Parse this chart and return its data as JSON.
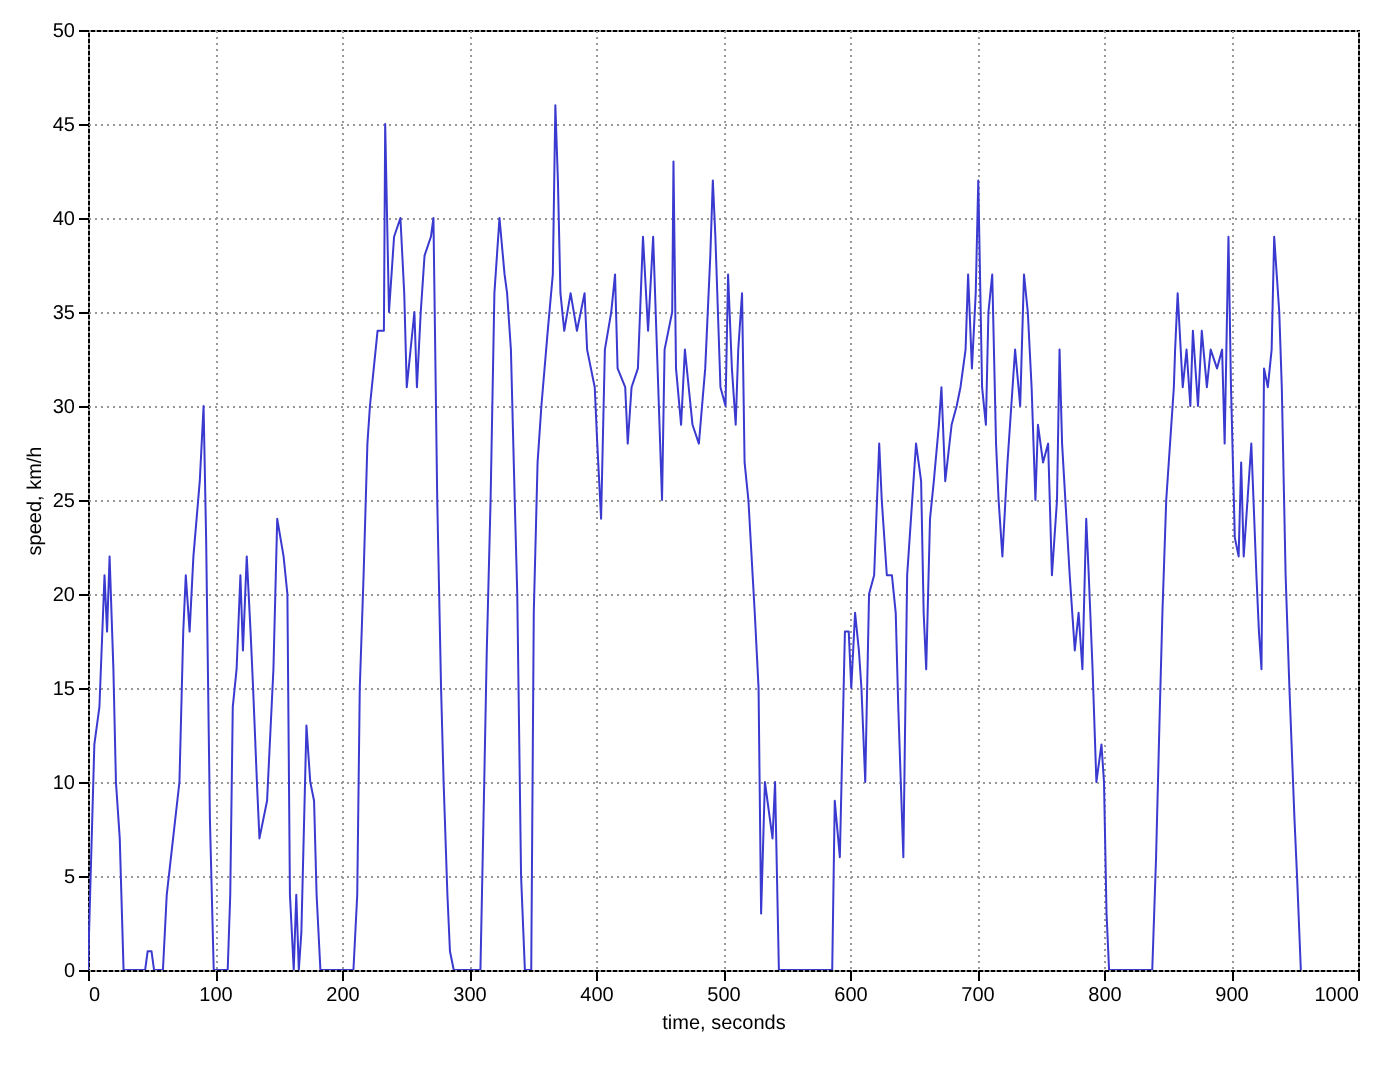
{
  "chart_data": {
    "type": "line",
    "xlabel": "time, seconds",
    "ylabel": "speed, km/h",
    "xlim": [
      0,
      1000
    ],
    "xticks": [
      0,
      100,
      200,
      300,
      400,
      500,
      600,
      700,
      800,
      900,
      1000
    ],
    "ylim": [
      0,
      50
    ],
    "yticks": [
      0,
      5,
      10,
      15,
      20,
      25,
      30,
      35,
      40,
      45,
      50
    ],
    "grid": true,
    "marker": "none",
    "line_style": "solid",
    "x": [
      0,
      5,
      9,
      13,
      15,
      17,
      20,
      22,
      25,
      28,
      45,
      47,
      50,
      52,
      59,
      62,
      67,
      72,
      75,
      77,
      80,
      83,
      88,
      91,
      93,
      96,
      99,
      110,
      112,
      114,
      117,
      120,
      122,
      125,
      128,
      130,
      133,
      135,
      141,
      146,
      149,
      154,
      157,
      159,
      162,
      164,
      166,
      168,
      172,
      175,
      178,
      180,
      183,
      209,
      212,
      214,
      217,
      220,
      222,
      225,
      228,
      233,
      234,
      237,
      241,
      246,
      249,
      251,
      257,
      259,
      262,
      265,
      270,
      272,
      275,
      278,
      280,
      283,
      285,
      288,
      309,
      312,
      314,
      317,
      320,
      324,
      328,
      330,
      333,
      336,
      338,
      341,
      344,
      349,
      351,
      354,
      357,
      362,
      366,
      368,
      370,
      372,
      375,
      380,
      385,
      391,
      393,
      399,
      401,
      404,
      407,
      412,
      415,
      417,
      423,
      425,
      428,
      433,
      437,
      441,
      445,
      449,
      452,
      454,
      460,
      461,
      463,
      467,
      470,
      476,
      481,
      486,
      490,
      492,
      494,
      498,
      502,
      504,
      507,
      510,
      512,
      515,
      517,
      520,
      525,
      528,
      530,
      533,
      539,
      541,
      544,
      586,
      588,
      592,
      596,
      599,
      601,
      604,
      607,
      609,
      612,
      615,
      619,
      623,
      625,
      629,
      633,
      636,
      638,
      642,
      645,
      649,
      652,
      656,
      658,
      660,
      663,
      666,
      670,
      672,
      675,
      680,
      684,
      687,
      691,
      693,
      696,
      699,
      701,
      704,
      707,
      709,
      712,
      715,
      717,
      720,
      724,
      728,
      730,
      734,
      737,
      740,
      743,
      746,
      748,
      752,
      756,
      759,
      763,
      765,
      767,
      773,
      777,
      780,
      783,
      786,
      788,
      791,
      794,
      798,
      800,
      802,
      804,
      838,
      841,
      844,
      846,
      849,
      852,
      855,
      856,
      858,
      862,
      865,
      868,
      870,
      874,
      877,
      881,
      884,
      889,
      893,
      895,
      898,
      900,
      903,
      906,
      908,
      910,
      913,
      916,
      920,
      922,
      924,
      926,
      929,
      932,
      934,
      936,
      938,
      940,
      943,
      946,
      950,
      952,
      955
    ],
    "series": [
      {
        "color": "#3a3ad0",
        "values": [
          0,
          12,
          14,
          21,
          18,
          22,
          16,
          10,
          7,
          0,
          0,
          1,
          1,
          0,
          0,
          4,
          7,
          10,
          18,
          21,
          18,
          22,
          26,
          30,
          23,
          8,
          0,
          0,
          4,
          14,
          16,
          21,
          17,
          22,
          18,
          15,
          10,
          7,
          9,
          16,
          24,
          22,
          20,
          4,
          0,
          4,
          0,
          2,
          13,
          10,
          9,
          4,
          0,
          0,
          4,
          15,
          21,
          28,
          30,
          32,
          34,
          34,
          45,
          35,
          39,
          40,
          36,
          31,
          35,
          31,
          35,
          38,
          39,
          40,
          25,
          15,
          10,
          4,
          1,
          0,
          0,
          10,
          17,
          25,
          36,
          40,
          37,
          36,
          33,
          25,
          20,
          5,
          0,
          0,
          19,
          27,
          30,
          34,
          37,
          46,
          42,
          36,
          34,
          36,
          34,
          36,
          33,
          31,
          28,
          24,
          33,
          35,
          37,
          32,
          31,
          28,
          31,
          32,
          39,
          34,
          39,
          31,
          25,
          33,
          35,
          43,
          32,
          29,
          33,
          29,
          28,
          32,
          38,
          42,
          39,
          31,
          30,
          37,
          32,
          29,
          33,
          36,
          27,
          25,
          19,
          15,
          3,
          10,
          7,
          10,
          0,
          0,
          9,
          6,
          18,
          18,
          15,
          19,
          17,
          15,
          10,
          20,
          21,
          28,
          25,
          21,
          21,
          19,
          14,
          6,
          21,
          25,
          28,
          26,
          19,
          16,
          24,
          26,
          29,
          31,
          26,
          29,
          30,
          31,
          33,
          37,
          32,
          36,
          42,
          31,
          29,
          35,
          37,
          28,
          25,
          22,
          27,
          31,
          33,
          30,
          37,
          35,
          31,
          25,
          29,
          27,
          28,
          21,
          25,
          33,
          28,
          21,
          17,
          19,
          16,
          24,
          21,
          16,
          10,
          12,
          10,
          3,
          0,
          0,
          6,
          14,
          19,
          25,
          28,
          31,
          33,
          36,
          31,
          33,
          30,
          34,
          30,
          34,
          31,
          33,
          32,
          33,
          28,
          39,
          31,
          23,
          22,
          27,
          22,
          25,
          28,
          21,
          18,
          16,
          32,
          31,
          33,
          39,
          37,
          35,
          31,
          21,
          15,
          8,
          5,
          0
        ]
      }
    ]
  }
}
